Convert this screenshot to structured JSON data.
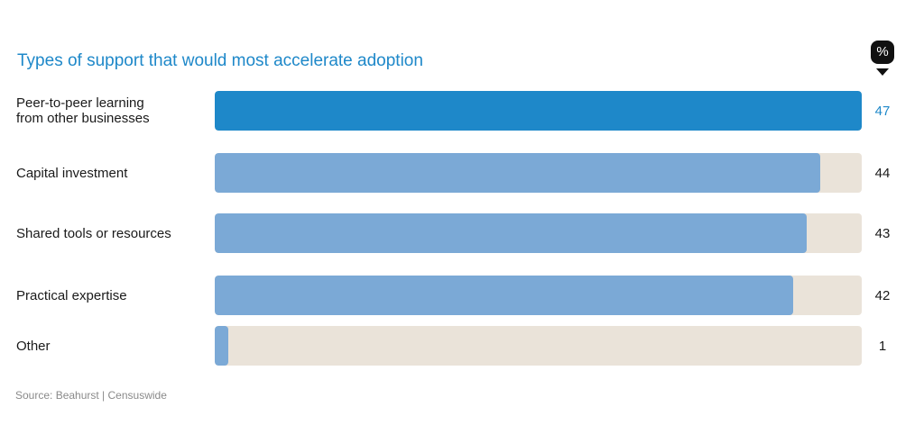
{
  "chart_data": {
    "type": "bar",
    "orientation": "horizontal",
    "title": "Types of support that would most accelerate adoption",
    "unit_label": "%",
    "categories": [
      "Peer-to-peer learning\nfrom other businesses",
      "Capital investment",
      "Shared tools or resources",
      "Practical expertise",
      "Other"
    ],
    "values": [
      47,
      44,
      43,
      42,
      1
    ],
    "xlim": [
      0,
      47
    ],
    "highlight_index": 0,
    "grid": false,
    "source": "Source: Beahurst | Censuswide",
    "colors": {
      "title": "#1e88c9",
      "highlight_bar": "#1e88c9",
      "bar": "#7ba9d6",
      "track": "#eae3d9",
      "highlight_value": "#1e88c9",
      "value": "#1a1a1a"
    }
  }
}
